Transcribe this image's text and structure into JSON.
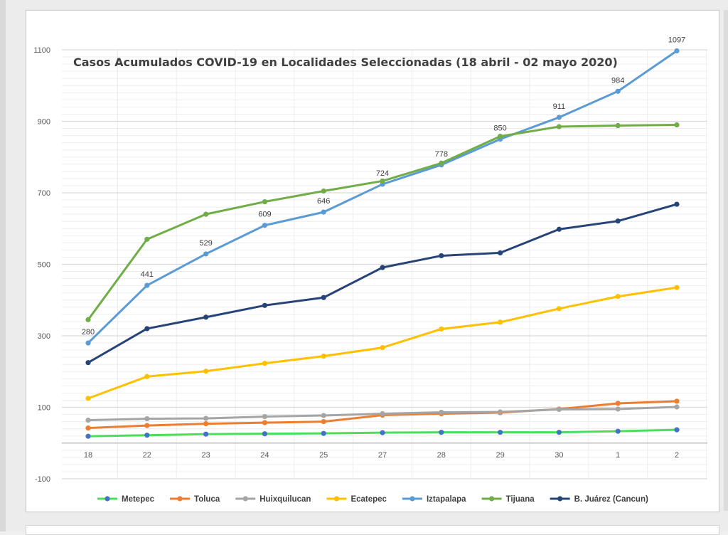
{
  "chart_data": {
    "type": "line",
    "title": "Casos Acumulados COVID-19 en Localidades Seleccionadas (18 abril - 02 mayo 2020)",
    "categories": [
      "18",
      "22",
      "23",
      "24",
      "25",
      "27",
      "28",
      "29",
      "30",
      "1",
      "2"
    ],
    "y_ticks": [
      "1100",
      "900",
      "700",
      "500",
      "300",
      "100",
      "-100"
    ],
    "ylim": [
      -100,
      1100
    ],
    "grid": true,
    "legend_position": "bottom",
    "series": [
      {
        "name": "Metepec",
        "color": "#4ade5a",
        "marker": "#4472c4",
        "values": [
          19,
          22,
          25,
          26,
          27,
          29,
          30,
          30,
          30,
          33,
          37
        ]
      },
      {
        "name": "Toluca",
        "color": "#ed7d31",
        "marker": "#ed7d31",
        "values": [
          42,
          49,
          54,
          57,
          60,
          78,
          82,
          85,
          95,
          111,
          117
        ]
      },
      {
        "name": "Huixquilucan",
        "color": "#a5a5a5",
        "marker": "#a5a5a5",
        "values": [
          64,
          68,
          69,
          74,
          77,
          82,
          86,
          87,
          94,
          95,
          101
        ]
      },
      {
        "name": "Ecatepec",
        "color": "#ffc000",
        "marker": "#ffc000",
        "values": [
          125,
          186,
          201,
          223,
          243,
          267,
          319,
          338,
          376,
          410,
          435
        ]
      },
      {
        "name": "Iztapalapa",
        "color": "#5b9bd5",
        "marker": "#5b9bd5",
        "values": [
          280,
          441,
          529,
          609,
          646,
          724,
          778,
          850,
          911,
          984,
          1097
        ],
        "labels": [
          "280",
          "441",
          "529",
          "609",
          "646",
          "724",
          "778",
          "850",
          "911",
          "984",
          "1097"
        ]
      },
      {
        "name": "Tijuana",
        "color": "#70ad47",
        "marker": "#70ad47",
        "values": [
          345,
          570,
          640,
          675,
          705,
          733,
          783,
          858,
          885,
          888,
          890
        ]
      },
      {
        "name": "B. Juárez (Cancun)",
        "color": "#264478",
        "marker": "#264478",
        "values": [
          225,
          320,
          352,
          385,
          407,
          491,
          524,
          532,
          598,
          621,
          668
        ]
      }
    ]
  }
}
